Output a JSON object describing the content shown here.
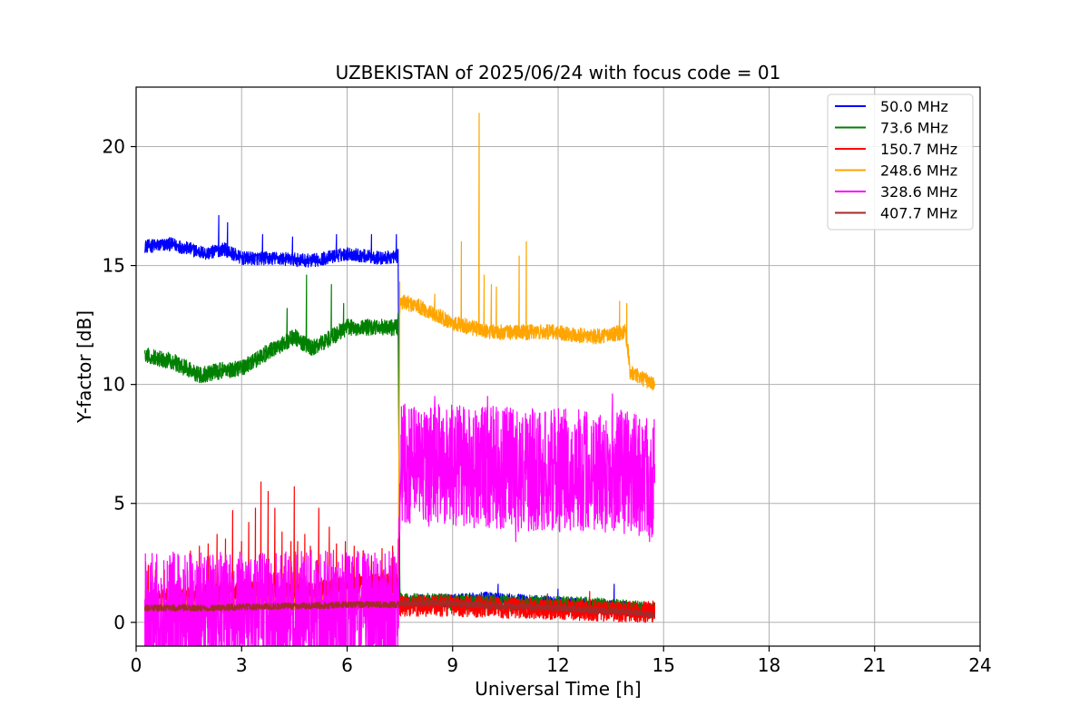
{
  "chart_data": {
    "type": "line",
    "title": "UZBEKISTAN of 2025/06/24 with focus code = 01",
    "xlabel": "Universal Time [h]",
    "ylabel": "Y-factor [dB]",
    "xlim": [
      0,
      24
    ],
    "ylim": [
      -1,
      22.5
    ],
    "xticks": [
      0,
      3,
      6,
      9,
      12,
      15,
      18,
      21,
      24
    ],
    "yticks": [
      0,
      5,
      10,
      15,
      20
    ],
    "grid": true,
    "legend_position": "top-right",
    "series": [
      {
        "name": " 50.0 MHz",
        "color": "#0000ff",
        "noise": 0.28,
        "points": [
          [
            0.25,
            15.8
          ],
          [
            1.0,
            15.9
          ],
          [
            2.0,
            15.5
          ],
          [
            2.5,
            15.7
          ],
          [
            3.0,
            15.3
          ],
          [
            4.0,
            15.3
          ],
          [
            5.0,
            15.2
          ],
          [
            6.0,
            15.5
          ],
          [
            7.0,
            15.3
          ],
          [
            7.45,
            15.4
          ],
          [
            7.5,
            0.9
          ],
          [
            9.0,
            0.9
          ],
          [
            10.0,
            1.0
          ],
          [
            11.0,
            0.9
          ],
          [
            12.0,
            0.8
          ],
          [
            13.0,
            0.7
          ],
          [
            14.0,
            0.6
          ],
          [
            14.75,
            0.5
          ]
        ],
        "spikes": [
          [
            2.35,
            17.1
          ],
          [
            2.6,
            16.8
          ],
          [
            4.45,
            16.2
          ],
          [
            3.6,
            16.3
          ],
          [
            5.7,
            16.3
          ],
          [
            6.7,
            16.3
          ],
          [
            7.4,
            16.3
          ],
          [
            10.3,
            1.6
          ],
          [
            12.0,
            1.4
          ],
          [
            13.6,
            1.6
          ]
        ]
      },
      {
        "name": " 73.6 MHz",
        "color": "#008000",
        "noise": 0.35,
        "points": [
          [
            0.25,
            11.2
          ],
          [
            1.0,
            11.0
          ],
          [
            1.8,
            10.4
          ],
          [
            2.5,
            10.6
          ],
          [
            3.0,
            10.7
          ],
          [
            3.8,
            11.4
          ],
          [
            4.5,
            12.0
          ],
          [
            5.0,
            11.5
          ],
          [
            6.0,
            12.4
          ],
          [
            7.0,
            12.4
          ],
          [
            7.45,
            12.4
          ],
          [
            7.5,
            0.9
          ],
          [
            9.0,
            0.85
          ],
          [
            11.0,
            0.8
          ],
          [
            13.0,
            0.7
          ],
          [
            14.75,
            0.5
          ]
        ],
        "spikes": [
          [
            4.85,
            14.6
          ],
          [
            5.55,
            14.2
          ],
          [
            4.3,
            13.2
          ],
          [
            5.9,
            13.4
          ],
          [
            7.45,
            13.0
          ]
        ]
      },
      {
        "name": "150.7 MHz",
        "color": "#ff0000",
        "noise": 0.45,
        "points": [
          [
            0.25,
            0.9
          ],
          [
            1.0,
            1.0
          ],
          [
            2.0,
            1.2
          ],
          [
            3.0,
            1.3
          ],
          [
            4.0,
            1.3
          ],
          [
            5.0,
            1.2
          ],
          [
            6.0,
            1.6
          ],
          [
            7.0,
            1.6
          ],
          [
            7.45,
            1.6
          ],
          [
            7.5,
            0.7
          ],
          [
            9.0,
            0.7
          ],
          [
            10.0,
            0.65
          ],
          [
            11.0,
            0.6
          ],
          [
            12.0,
            0.55
          ],
          [
            13.0,
            0.5
          ],
          [
            14.0,
            0.45
          ],
          [
            14.75,
            0.45
          ]
        ],
        "spikes": [
          [
            0.35,
            2.4
          ],
          [
            0.55,
            2.2
          ],
          [
            0.8,
            2.2
          ],
          [
            1.2,
            2.3
          ],
          [
            1.55,
            3.0
          ],
          [
            1.8,
            3.2
          ],
          [
            2.05,
            3.3
          ],
          [
            2.3,
            3.7
          ],
          [
            2.55,
            3.5
          ],
          [
            2.75,
            4.7
          ],
          [
            3.0,
            3.4
          ],
          [
            3.2,
            4.2
          ],
          [
            3.4,
            4.8
          ],
          [
            3.55,
            5.9
          ],
          [
            3.75,
            5.5
          ],
          [
            3.95,
            4.8
          ],
          [
            4.15,
            3.8
          ],
          [
            4.4,
            3.4
          ],
          [
            4.6,
            3.4
          ],
          [
            4.8,
            3.7
          ],
          [
            4.95,
            3.2
          ],
          [
            5.15,
            2.6
          ],
          [
            5.5,
            4.0
          ],
          [
            5.7,
            3.3
          ],
          [
            5.95,
            3.4
          ],
          [
            6.2,
            3.2
          ],
          [
            6.45,
            3.0
          ],
          [
            6.7,
            2.8
          ],
          [
            7.0,
            3.1
          ],
          [
            7.3,
            3.2
          ],
          [
            7.45,
            3.5
          ],
          [
            4.5,
            5.7
          ],
          [
            5.2,
            4.8
          ],
          [
            12.9,
            1.3
          ],
          [
            11.7,
            1.2
          ]
        ]
      },
      {
        "name": "248.6 MHz",
        "color": "#ffa500",
        "noise": 0.32,
        "points": [
          [
            0.25,
            0.7
          ],
          [
            3.0,
            0.75
          ],
          [
            6.0,
            0.9
          ],
          [
            7.45,
            0.95
          ],
          [
            7.5,
            13.5
          ],
          [
            8.0,
            13.3
          ],
          [
            9.0,
            12.6
          ],
          [
            10.0,
            12.2
          ],
          [
            11.0,
            12.2
          ],
          [
            12.0,
            12.2
          ],
          [
            13.0,
            12.0
          ],
          [
            13.9,
            12.2
          ],
          [
            14.0,
            11.3
          ],
          [
            14.05,
            10.5
          ],
          [
            14.75,
            10.0
          ]
        ],
        "spikes": [
          [
            7.5,
            14.3
          ],
          [
            9.75,
            21.4
          ],
          [
            9.25,
            16.0
          ],
          [
            9.9,
            14.6
          ],
          [
            10.1,
            14.2
          ],
          [
            10.25,
            14.1
          ],
          [
            10.9,
            15.4
          ],
          [
            11.1,
            16.0
          ],
          [
            13.75,
            13.5
          ],
          [
            13.95,
            13.4
          ],
          [
            8.5,
            13.8
          ]
        ]
      },
      {
        "name": "328.6 MHz",
        "color": "#ff00ff",
        "noise": 2.6,
        "points": [
          [
            0.25,
            0.35
          ],
          [
            3.0,
            0.4
          ],
          [
            6.0,
            0.45
          ],
          [
            7.45,
            0.45
          ],
          [
            7.5,
            6.6
          ],
          [
            9.0,
            6.6
          ],
          [
            10.0,
            6.5
          ],
          [
            11.0,
            6.4
          ],
          [
            12.0,
            6.4
          ],
          [
            13.0,
            6.4
          ],
          [
            14.0,
            6.3
          ],
          [
            14.75,
            6.1
          ]
        ],
        "spikes": [
          [
            8.5,
            9.5
          ],
          [
            10.0,
            9.5
          ],
          [
            13.55,
            9.6
          ],
          [
            10.8,
            3.4
          ],
          [
            14.6,
            3.4
          ]
        ]
      },
      {
        "name": "407.7 MHz",
        "color": "#a52a2a",
        "noise": 0.14,
        "points": [
          [
            0.25,
            0.6
          ],
          [
            2.0,
            0.6
          ],
          [
            3.0,
            0.65
          ],
          [
            5.0,
            0.7
          ],
          [
            6.0,
            0.75
          ],
          [
            7.45,
            0.75
          ],
          [
            7.5,
            0.8
          ],
          [
            9.0,
            0.8
          ],
          [
            10.0,
            0.7
          ],
          [
            11.0,
            0.65
          ],
          [
            12.0,
            0.6
          ],
          [
            13.0,
            0.5
          ],
          [
            14.0,
            0.45
          ],
          [
            14.75,
            0.3
          ]
        ],
        "spikes": []
      }
    ]
  }
}
